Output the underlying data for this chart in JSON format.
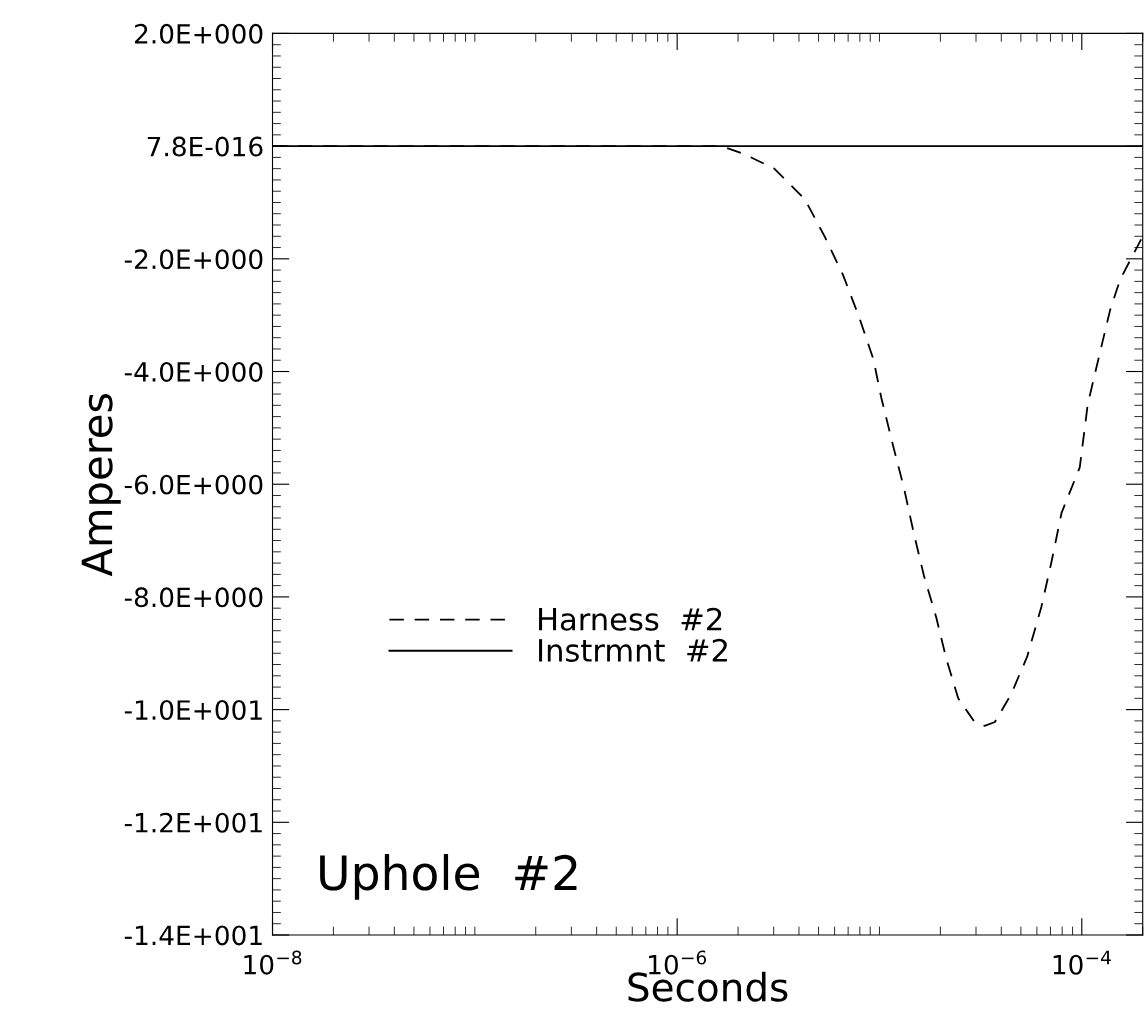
{
  "chart_data": {
    "type": "line",
    "xlabel": "Seconds",
    "ylabel": "Amperes",
    "log": "x",
    "xlim": [
      1e-08,
      0.0002
    ],
    "ylim": [
      -14,
      2
    ],
    "xticks": [
      {
        "value": 1e-08,
        "label": "10$^{−8}$"
      },
      {
        "value": 1e-06,
        "label": "10$^{−6}$"
      },
      {
        "value": 0.0001,
        "label": "10$^{−4}$"
      }
    ],
    "yticks": [
      {
        "value": 2,
        "label": "2.0E+000"
      },
      {
        "value": 0,
        "label": "7.8E-016"
      },
      {
        "value": -2,
        "label": "-2.0E+000"
      },
      {
        "value": -4,
        "label": "-4.0E+000"
      },
      {
        "value": -6,
        "label": "-6.0E+000"
      },
      {
        "value": -8,
        "label": "-8.0E+000"
      },
      {
        "value": -10,
        "label": "-1.0E+001"
      },
      {
        "value": -12,
        "label": "-1.2E+001"
      },
      {
        "value": -14,
        "label": "-1.4E+001"
      }
    ],
    "grid": false,
    "legend": "center",
    "annotations": [
      "Uphole  #2"
    ],
    "series": [
      {
        "name": "Harness  #2",
        "color": "#000000",
        "line_style": "dashed",
        "x": [
          1e-08,
          1.66e-06,
          2.14e-06,
          3.02e-06,
          4.27e-06,
          5.37e-06,
          6.61e-06,
          7.94e-06,
          9.33e-06,
          1.02e-05,
          1.17e-05,
          1.32e-05,
          1.48e-05,
          1.66e-05,
          1.91e-05,
          2.14e-05,
          2.45e-05,
          2.95e-05,
          3.31e-05,
          3.72e-05,
          4.47e-05,
          5.37e-05,
          6.31e-05,
          7.08e-05,
          7.94e-05,
          9.77e-05,
          0.000107,
          0.000123,
          0.000138,
          0.000155,
          0.000191,
          0.0002
        ],
        "values": [
          0,
          0,
          -0.14,
          -0.4,
          -0.94,
          -1.61,
          -2.29,
          -3.04,
          -3.78,
          -4.46,
          -5.33,
          -6.06,
          -6.88,
          -7.63,
          -8.37,
          -9.1,
          -9.8,
          -10.22,
          -10.29,
          -10.22,
          -9.73,
          -9.06,
          -8.18,
          -7.38,
          -6.51,
          -5.7,
          -4.58,
          -3.66,
          -2.91,
          -2.36,
          -1.74,
          -1.6
        ]
      },
      {
        "name": "Instrmnt  #2",
        "color": "#000000",
        "line_style": "solid",
        "x": [
          1e-08,
          0.0002
        ],
        "values": [
          0,
          0
        ]
      }
    ]
  }
}
